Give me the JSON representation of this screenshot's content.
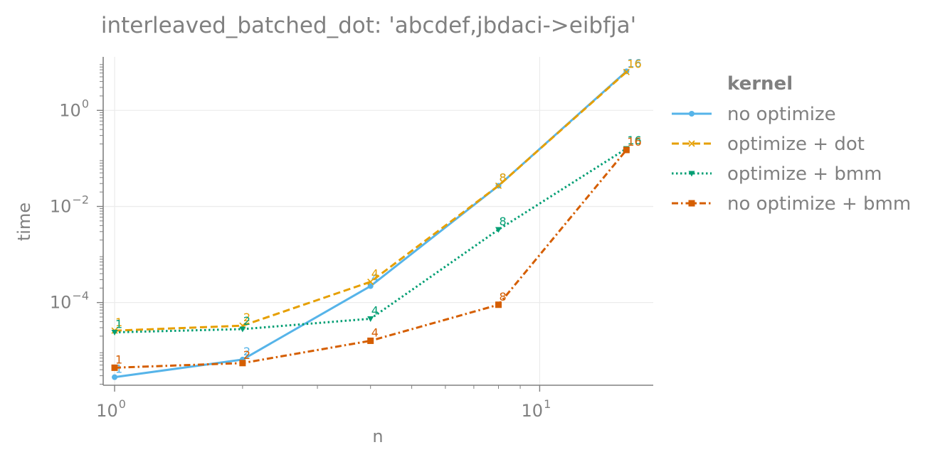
{
  "chart_data": {
    "type": "line",
    "title": "interleaved_batched_dot: 'abcdef,jbdaci->eibfja'",
    "xlabel": "n",
    "ylabel": "time",
    "x_scale": "log",
    "y_scale": "log",
    "xlim": [
      0.94,
      18.5
    ],
    "ylim": [
      1.9e-06,
      13
    ],
    "x_ticks": [
      {
        "value": 1,
        "base": "10",
        "exp": "0"
      },
      {
        "value": 10,
        "base": "10",
        "exp": "1"
      }
    ],
    "y_ticks": [
      {
        "value": 1,
        "base": "10",
        "exp": "0"
      },
      {
        "value": 0.01,
        "base": "10",
        "exp": "−2"
      },
      {
        "value": 0.0001,
        "base": "10",
        "exp": "−4"
      }
    ],
    "grid": true,
    "legend": {
      "title": "kernel",
      "placement": "right"
    },
    "x": [
      1,
      2,
      4,
      8,
      16
    ],
    "point_labels": [
      "1",
      "2",
      "4",
      "8",
      "16"
    ],
    "series": [
      {
        "name": "no optimize",
        "color": "#56b4e9",
        "dash": "solid",
        "marker": "circle",
        "values": [
          2.8e-06,
          6.5e-06,
          0.00022,
          0.027,
          6.5
        ]
      },
      {
        "name": "optimize + dot",
        "color": "#e69f00",
        "dash": "dashed",
        "marker": "x",
        "values": [
          2.6e-05,
          3.3e-05,
          0.00027,
          0.027,
          6.3
        ]
      },
      {
        "name": "optimize + bmm",
        "color": "#009e73",
        "dash": "dotted",
        "marker": "triangle-down",
        "values": [
          2.4e-05,
          2.8e-05,
          4.6e-05,
          0.0033,
          0.16
        ]
      },
      {
        "name": "no optimize + bmm",
        "color": "#d55e00",
        "dash": "dashdot",
        "marker": "square",
        "values": [
          4.4e-06,
          5.5e-06,
          1.6e-05,
          9e-05,
          0.15
        ]
      }
    ]
  }
}
